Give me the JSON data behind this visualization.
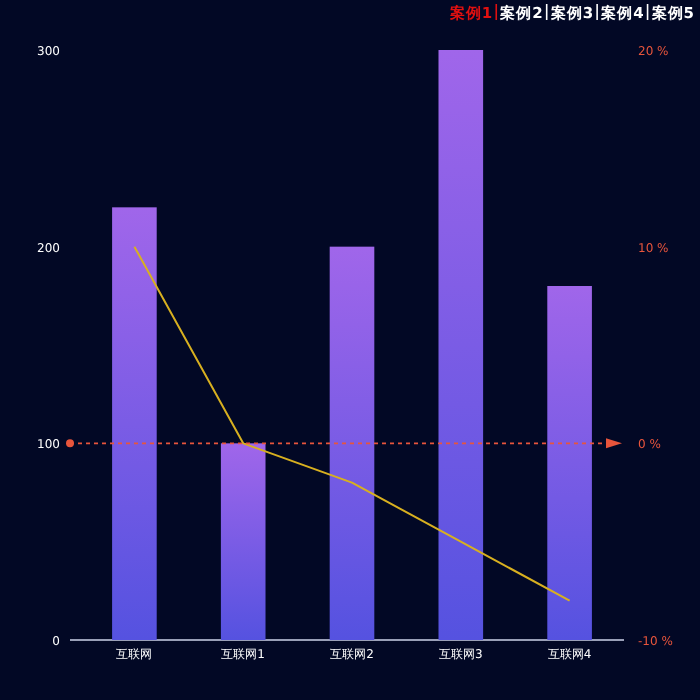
{
  "chart_data": {
    "type": "bar",
    "categories": [
      "互联网",
      "互联网1",
      "互联网2",
      "互联网3",
      "互联网4"
    ],
    "series": [
      {
        "color": "#a066ea",
        "values": [
          220,
          100,
          200,
          300,
          180
        ]
      },
      {
        "type": "line",
        "axis": "y2",
        "color": "#d8b020",
        "values": [
          10,
          0,
          -2,
          -5,
          -8
        ]
      }
    ],
    "ylim": [
      0,
      300
    ],
    "yticks": [
      0,
      100,
      200,
      300
    ],
    "y2lim": [
      -10,
      20
    ],
    "y2ticks": [
      {
        "value": -10,
        "label": "-10 %"
      },
      {
        "value": 0,
        "label": "0 %"
      },
      {
        "value": 10,
        "label": "10 %"
      },
      {
        "value": 20,
        "label": "20 %"
      }
    ],
    "ref_lines": [
      {
        "axis": "y2",
        "value": 0,
        "color": "#e8553c",
        "line_style": "dashed"
      }
    ],
    "annotations": [
      "案例1",
      "案例2",
      "案例3",
      "案例4",
      "案例5"
    ],
    "grid": false
  }
}
